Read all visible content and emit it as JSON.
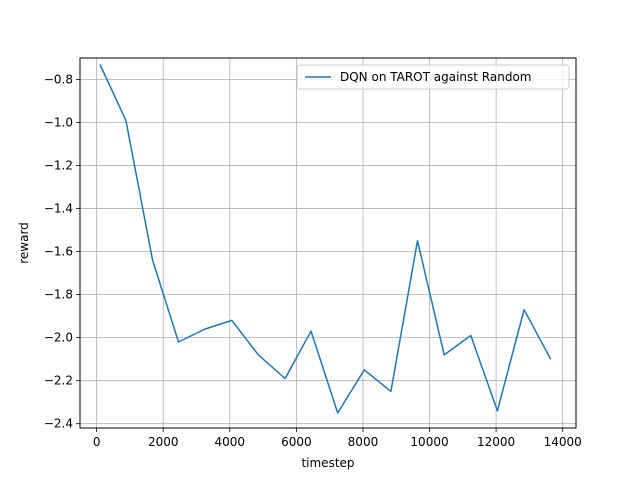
{
  "chart_data": {
    "type": "line",
    "title": "",
    "xlabel": "timestep",
    "ylabel": "reward",
    "xlim": [
      -500,
      14400
    ],
    "ylim": [
      -2.42,
      -0.7
    ],
    "xticks": [
      0,
      2000,
      4000,
      6000,
      8000,
      10000,
      12000,
      14000
    ],
    "xtick_labels": [
      "0",
      "2000",
      "4000",
      "6000",
      "8000",
      "10000",
      "12000",
      "14000"
    ],
    "yticks": [
      -0.8,
      -1.0,
      -1.2,
      -1.4,
      -1.6,
      -1.8,
      -2.0,
      -2.2,
      -2.4
    ],
    "ytick_labels": [
      "−0.8",
      "−1.0",
      "−1.2",
      "−1.4",
      "−1.6",
      "−1.8",
      "−2.0",
      "−2.2",
      "−2.4"
    ],
    "grid": true,
    "legend_position": "top-right",
    "series": [
      {
        "name": "DQN on TAROT against Random",
        "color": "#1f77b4",
        "x": [
          100,
          880,
          1680,
          2460,
          3260,
          4060,
          4860,
          5660,
          6440,
          7240,
          8040,
          8840,
          9640,
          10440,
          11240,
          12040,
          12840,
          13640
        ],
        "y": [
          -0.73,
          -0.99,
          -1.64,
          -2.02,
          -1.96,
          -1.92,
          -2.08,
          -2.19,
          -1.97,
          -2.35,
          -2.15,
          -2.25,
          -1.55,
          -2.08,
          -1.99,
          -2.34,
          -1.87,
          -2.1
        ]
      }
    ]
  }
}
